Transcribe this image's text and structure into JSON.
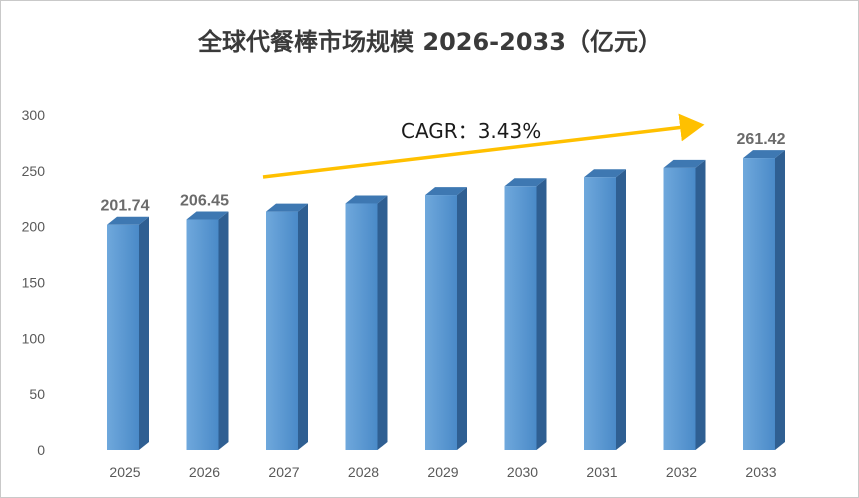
{
  "chart_data": {
    "type": "bar",
    "title": "全球代餐棒市场规模 2026-2033（亿元）",
    "categories": [
      "2025",
      "2026",
      "2027",
      "2028",
      "2029",
      "2030",
      "2031",
      "2032",
      "2033"
    ],
    "values": [
      201.74,
      206.45,
      213.5,
      220.8,
      228.3,
      236.2,
      244.3,
      252.7,
      261.42
    ],
    "data_labels": [
      "201.74",
      "206.45",
      "",
      "",
      "",
      "",
      "",
      "",
      "261.42"
    ],
    "ylim": [
      0,
      300
    ],
    "yticks": [
      0,
      50,
      100,
      150,
      200,
      250,
      300
    ],
    "grid": false,
    "annotation": {
      "text": "CAGR：3.43%",
      "arrow_color": "#FFC000"
    },
    "colors": {
      "bar_front": "#5B9BD5",
      "bar_side": "#2F5F92",
      "bar_top": "#3E78B2",
      "arrow": "#FFC000"
    }
  }
}
